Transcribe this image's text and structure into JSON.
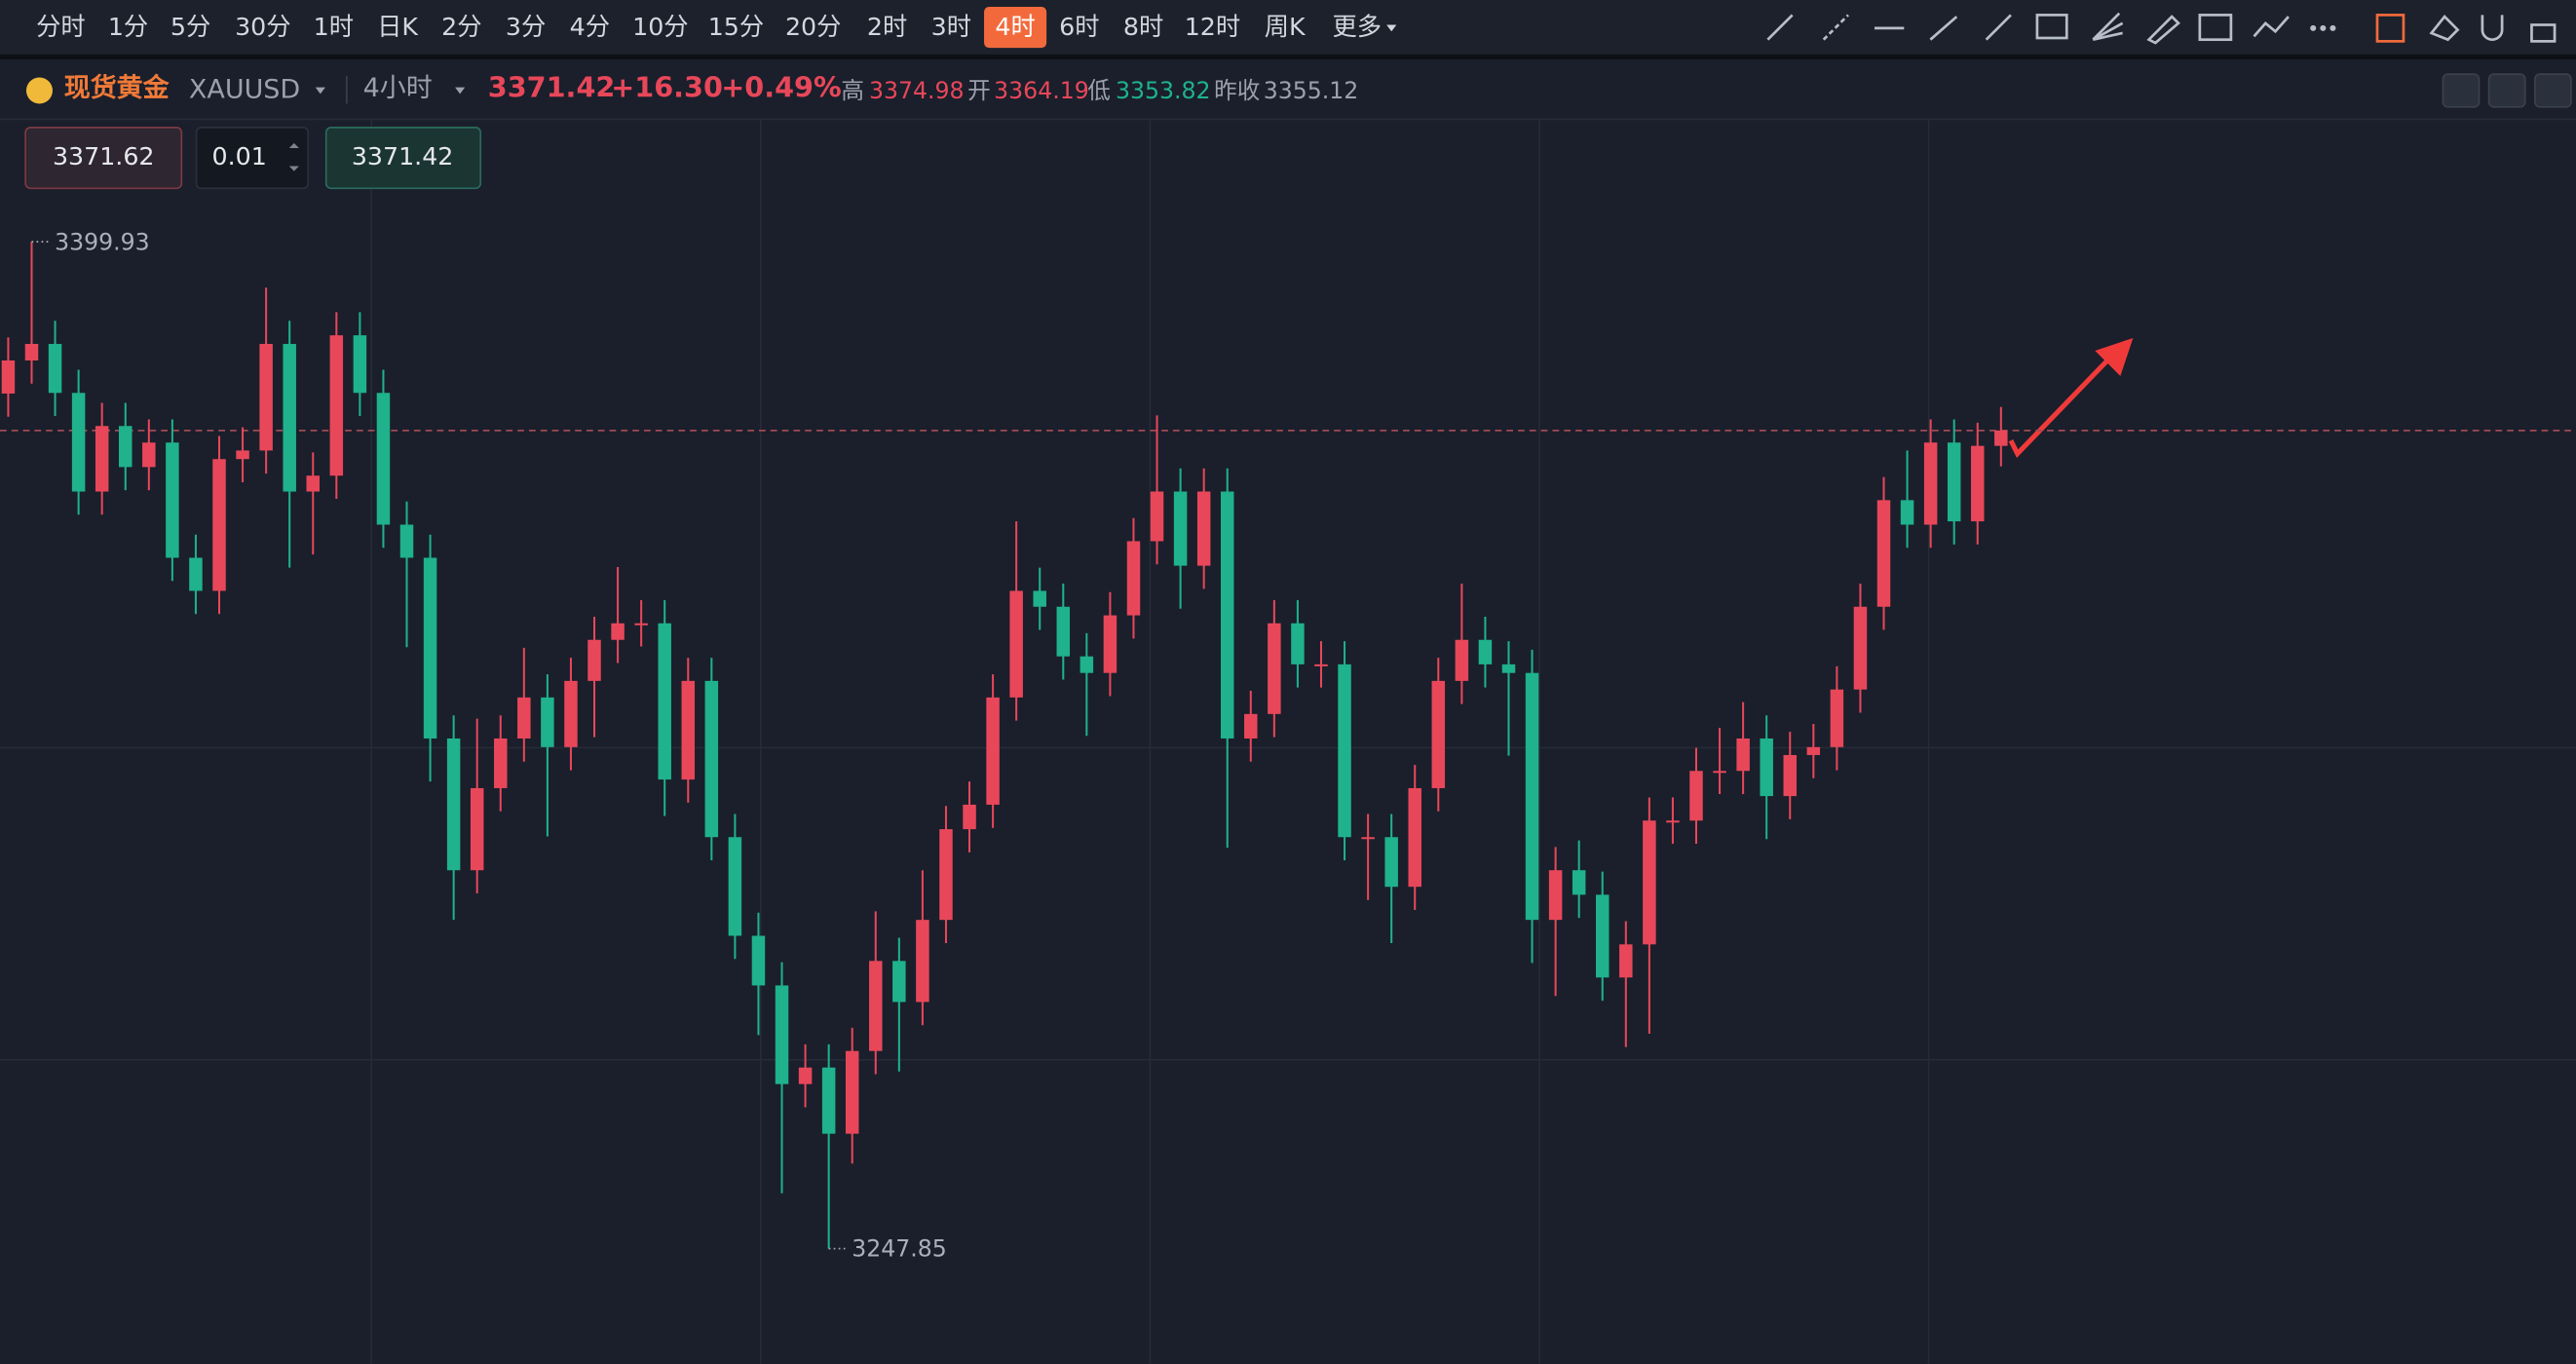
{
  "toolbar": {
    "timeframes": [
      "分时",
      "1分",
      "5分",
      "30分",
      "1时",
      "日K",
      "2分",
      "3分",
      "4分",
      "10分",
      "15分",
      "20分",
      "2时",
      "3时",
      "4时",
      "6时",
      "8时",
      "12时",
      "周K",
      "更多"
    ],
    "active": "4时"
  },
  "header": {
    "name": "现货黄金",
    "symbol": "XAUUSD",
    "period": "4小时",
    "price": "3371.42",
    "change": "+16.30",
    "change_pct": "+0.49%",
    "high_label": "高",
    "high": "3374.98",
    "open_label": "开",
    "open": "3364.19",
    "low_label": "低",
    "low": "3353.82",
    "prev_label": "昨收",
    "prev": "3355.12"
  },
  "order": {
    "sell": "3371.62",
    "qty": "0.01",
    "buy": "3371.42"
  },
  "chart_data": {
    "type": "candlestick",
    "ylim": [
      3230.45,
      3418.3
    ],
    "up_color": "#e8475a",
    "down_color": "#1fb28c",
    "candles": [
      [
        3377.0,
        3385.5,
        3373.5,
        3382.0
      ],
      [
        3382.0,
        3399.93,
        3378.5,
        3384.5
      ],
      [
        3384.5,
        3388.0,
        3373.6,
        3377.1
      ],
      [
        3377.1,
        3380.6,
        3358.7,
        3362.2
      ],
      [
        3362.2,
        3375.6,
        3358.7,
        3372.1
      ],
      [
        3372.1,
        3375.6,
        3362.4,
        3365.9
      ],
      [
        3365.9,
        3373.1,
        3362.4,
        3369.6
      ],
      [
        3369.6,
        3373.1,
        3348.7,
        3352.2
      ],
      [
        3352.2,
        3355.7,
        3343.7,
        3347.2
      ],
      [
        3347.2,
        3370.6,
        3343.7,
        3367.1
      ],
      [
        3367.1,
        3371.9,
        3363.6,
        3368.4
      ],
      [
        3368.4,
        3393.0,
        3364.9,
        3384.5
      ],
      [
        3384.5,
        3388.0,
        3350.7,
        3362.2
      ],
      [
        3362.2,
        3368.1,
        3352.7,
        3364.6
      ],
      [
        3364.6,
        3389.3,
        3361.1,
        3385.8
      ],
      [
        3385.8,
        3389.3,
        3373.6,
        3377.1
      ],
      [
        3377.1,
        3380.6,
        3353.7,
        3357.2
      ],
      [
        3357.2,
        3360.7,
        3338.7,
        3352.2
      ],
      [
        3352.2,
        3355.7,
        3318.4,
        3324.9
      ],
      [
        3324.9,
        3328.4,
        3297.5,
        3305.0
      ],
      [
        3305.0,
        3327.9,
        3301.5,
        3317.4
      ],
      [
        3317.4,
        3328.4,
        3313.9,
        3324.9
      ],
      [
        3324.9,
        3338.6,
        3321.4,
        3331.1
      ],
      [
        3331.1,
        3334.6,
        3310.1,
        3323.6
      ],
      [
        3323.6,
        3337.1,
        3320.1,
        3333.6
      ],
      [
        3333.6,
        3343.3,
        3325.1,
        3339.8
      ],
      [
        3339.8,
        3350.8,
        3336.3,
        3342.3
      ],
      [
        3342.3,
        3345.8,
        3338.8,
        3342.3
      ],
      [
        3342.3,
        3345.8,
        3313.2,
        3318.7
      ],
      [
        3318.7,
        3337.1,
        3315.2,
        3333.6
      ],
      [
        3333.6,
        3337.1,
        3306.5,
        3310.0
      ],
      [
        3310.0,
        3313.5,
        3291.6,
        3295.1
      ],
      [
        3295.1,
        3298.6,
        3280.1,
        3287.6
      ],
      [
        3287.6,
        3291.1,
        3256.2,
        3272.7
      ],
      [
        3272.7,
        3278.7,
        3269.2,
        3275.2
      ],
      [
        3275.2,
        3278.7,
        3247.85,
        3265.2
      ],
      [
        3265.2,
        3281.2,
        3260.7,
        3277.7
      ],
      [
        3277.7,
        3298.8,
        3274.2,
        3291.3
      ],
      [
        3291.3,
        3294.8,
        3274.6,
        3285.1
      ],
      [
        3285.1,
        3305.0,
        3281.6,
        3297.5
      ],
      [
        3297.5,
        3314.7,
        3294.0,
        3311.2
      ],
      [
        3311.2,
        3318.4,
        3307.7,
        3314.9
      ],
      [
        3314.9,
        3334.6,
        3311.4,
        3331.1
      ],
      [
        3331.1,
        3357.7,
        3327.6,
        3347.2
      ],
      [
        3347.2,
        3350.7,
        3341.3,
        3344.8
      ],
      [
        3344.8,
        3348.3,
        3333.8,
        3337.3
      ],
      [
        3337.3,
        3340.8,
        3325.3,
        3334.8
      ],
      [
        3334.8,
        3347.0,
        3331.3,
        3343.5
      ],
      [
        3343.5,
        3358.2,
        3340.0,
        3354.7
      ],
      [
        3354.7,
        3373.7,
        3351.2,
        3362.2
      ],
      [
        3362.2,
        3365.7,
        3344.5,
        3351.0
      ],
      [
        3351.0,
        3365.7,
        3347.5,
        3362.2
      ],
      [
        3362.2,
        3365.7,
        3308.4,
        3324.9
      ],
      [
        3324.9,
        3332.1,
        3321.4,
        3328.6
      ],
      [
        3328.6,
        3345.8,
        3325.1,
        3342.3
      ],
      [
        3342.3,
        3345.8,
        3332.6,
        3336.1
      ],
      [
        3336.1,
        3339.6,
        3332.6,
        3336.1
      ],
      [
        3336.1,
        3339.6,
        3306.5,
        3310.0
      ],
      [
        3310.0,
        3313.5,
        3300.5,
        3310.0
      ],
      [
        3310.0,
        3313.5,
        3294.0,
        3302.5
      ],
      [
        3302.5,
        3320.9,
        3299.0,
        3317.4
      ],
      [
        3317.4,
        3337.1,
        3313.9,
        3333.6
      ],
      [
        3333.6,
        3348.3,
        3330.1,
        3339.8
      ],
      [
        3339.8,
        3343.3,
        3332.6,
        3336.1
      ],
      [
        3336.1,
        3339.6,
        3322.3,
        3334.8
      ],
      [
        3334.8,
        3338.3,
        3291.0,
        3297.5
      ],
      [
        3297.5,
        3308.5,
        3286.0,
        3305.0
      ],
      [
        3305.0,
        3309.5,
        3297.8,
        3301.3
      ],
      [
        3301.3,
        3304.8,
        3285.3,
        3288.8
      ],
      [
        3288.8,
        3297.3,
        3278.3,
        3293.8
      ],
      [
        3293.8,
        3316.0,
        3280.3,
        3312.5
      ],
      [
        3312.5,
        3316.0,
        3309.0,
        3312.5
      ],
      [
        3312.5,
        3323.5,
        3309.0,
        3320.0
      ],
      [
        3320.0,
        3326.5,
        3316.5,
        3320.0
      ],
      [
        3320.0,
        3330.4,
        3316.5,
        3324.9
      ],
      [
        3324.9,
        3328.4,
        3309.7,
        3316.2
      ],
      [
        3316.2,
        3325.9,
        3312.7,
        3322.4
      ],
      [
        3322.4,
        3327.1,
        3318.9,
        3323.6
      ],
      [
        3323.6,
        3335.8,
        3320.1,
        3332.3
      ],
      [
        3332.3,
        3348.3,
        3328.8,
        3344.8
      ],
      [
        3344.8,
        3364.4,
        3341.3,
        3360.9
      ],
      [
        3360.9,
        3368.4,
        3353.7,
        3357.2
      ],
      [
        3357.2,
        3373.1,
        3353.7,
        3369.6
      ],
      [
        3369.6,
        3373.1,
        3354.2,
        3357.7
      ],
      [
        3357.7,
        3372.6,
        3354.2,
        3369.1
      ],
      [
        3369.1,
        3374.98,
        3366.0,
        3371.42
      ]
    ]
  }
}
